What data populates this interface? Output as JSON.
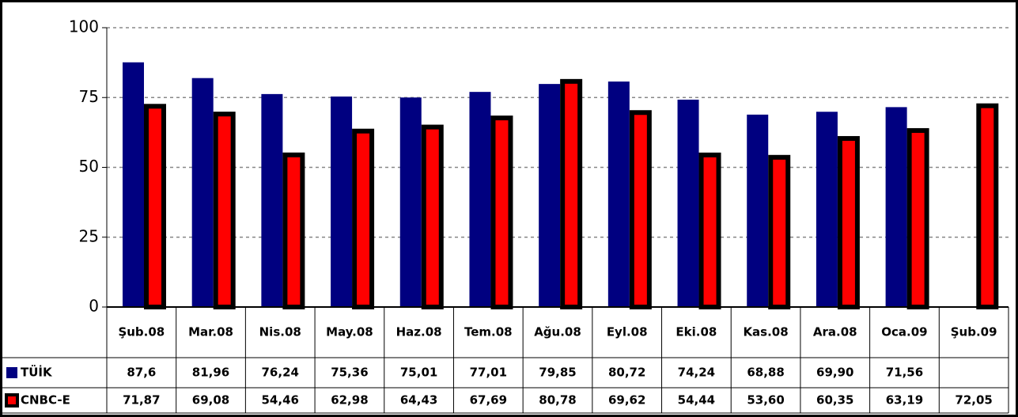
{
  "chart_data": {
    "type": "bar",
    "categories": [
      "Şub.08",
      "Mar.08",
      "Nis.08",
      "May.08",
      "Haz.08",
      "Tem.08",
      "Ağu.08",
      "Eyl.08",
      "Eki.08",
      "Kas.08",
      "Ara.08",
      "Oca.09",
      "Şub.09"
    ],
    "series": [
      {
        "name": "TÜİK",
        "color": "#000080",
        "values": [
          87.6,
          81.96,
          76.24,
          75.36,
          75.01,
          77.01,
          79.85,
          80.72,
          74.24,
          68.88,
          69.9,
          71.56,
          null
        ],
        "value_labels": [
          "87,6",
          "81,96",
          "76,24",
          "75,36",
          "75,01",
          "77,01",
          "79,85",
          "80,72",
          "74,24",
          "68,88",
          "69,90",
          "71,56",
          null
        ]
      },
      {
        "name": "CNBC-E",
        "color": "#ff0000",
        "values": [
          71.87,
          69.08,
          54.46,
          62.98,
          64.43,
          67.69,
          80.78,
          69.62,
          54.44,
          53.6,
          60.35,
          63.19,
          72.05
        ],
        "value_labels": [
          "71,87",
          "69,08",
          "54,46",
          "62,98",
          "64,43",
          "67,69",
          "80,78",
          "69,62",
          "54,44",
          "53,60",
          "60,35",
          "63,19",
          "72,05"
        ]
      }
    ],
    "ylim": [
      0,
      100
    ],
    "yticks": [
      0,
      25,
      50,
      75,
      100
    ],
    "grid": true
  }
}
